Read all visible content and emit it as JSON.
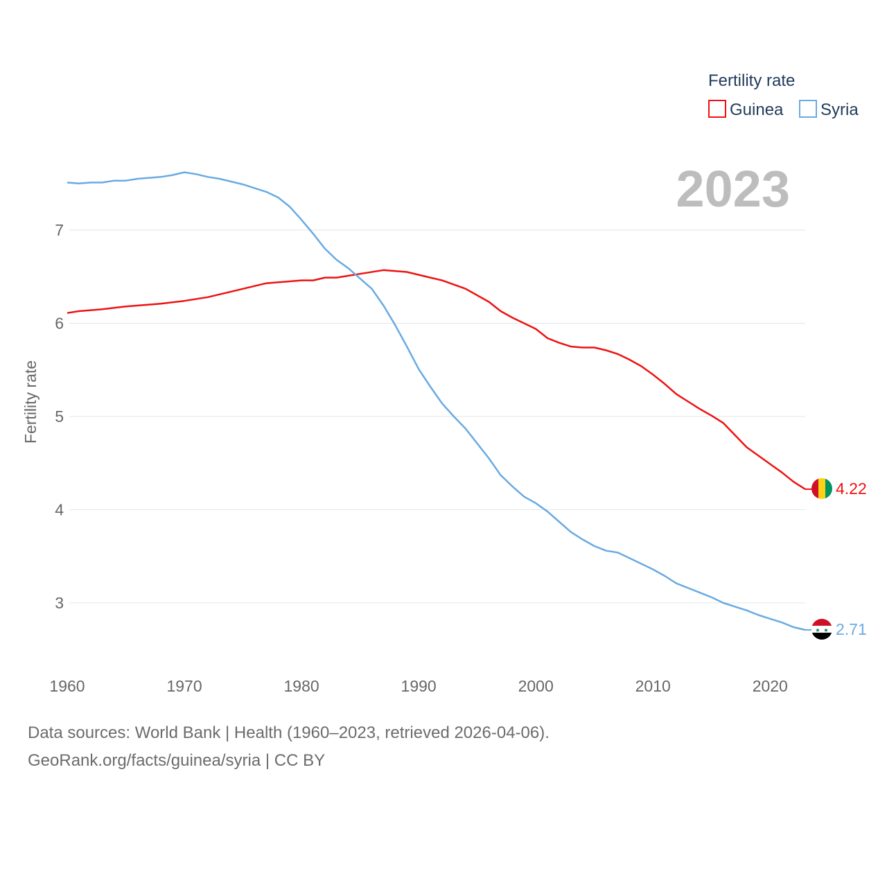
{
  "chart_data": {
    "type": "line",
    "title": "Fertility rate",
    "ylabel": "Fertility rate",
    "xlabel": "",
    "current_year": "2023",
    "xlim": [
      1960,
      2023
    ],
    "ylim": [
      2.5,
      7.75
    ],
    "x_ticks": [
      1960,
      1970,
      1980,
      1990,
      2000,
      2010,
      2020
    ],
    "y_ticks": [
      3,
      4,
      5,
      6,
      7
    ],
    "grid": true,
    "legend_position": "top-right",
    "series": [
      {
        "name": "Guinea",
        "color": "#ee1111",
        "end_label": "4.22",
        "flag": "guinea-flag",
        "points": [
          [
            1960,
            6.11
          ],
          [
            1961,
            6.13
          ],
          [
            1963,
            6.15
          ],
          [
            1965,
            6.18
          ],
          [
            1968,
            6.21
          ],
          [
            1970,
            6.24
          ],
          [
            1972,
            6.28
          ],
          [
            1974,
            6.34
          ],
          [
            1977,
            6.43
          ],
          [
            1980,
            6.46
          ],
          [
            1981,
            6.46
          ],
          [
            1982,
            6.49
          ],
          [
            1983,
            6.49
          ],
          [
            1985,
            6.53
          ],
          [
            1987,
            6.57
          ],
          [
            1989,
            6.55
          ],
          [
            1991,
            6.49
          ],
          [
            1992,
            6.46
          ],
          [
            1994,
            6.37
          ],
          [
            1996,
            6.23
          ],
          [
            1997,
            6.13
          ],
          [
            1998,
            6.06
          ],
          [
            2000,
            5.94
          ],
          [
            2001,
            5.84
          ],
          [
            2002,
            5.79
          ],
          [
            2003,
            5.75
          ],
          [
            2004,
            5.74
          ],
          [
            2005,
            5.74
          ],
          [
            2006,
            5.71
          ],
          [
            2007,
            5.67
          ],
          [
            2008,
            5.61
          ],
          [
            2009,
            5.54
          ],
          [
            2010,
            5.45
          ],
          [
            2011,
            5.35
          ],
          [
            2012,
            5.24
          ],
          [
            2013,
            5.16
          ],
          [
            2014,
            5.08
          ],
          [
            2015,
            5.01
          ],
          [
            2016,
            4.93
          ],
          [
            2017,
            4.8
          ],
          [
            2018,
            4.67
          ],
          [
            2019,
            4.58
          ],
          [
            2020,
            4.49
          ],
          [
            2021,
            4.4
          ],
          [
            2022,
            4.3
          ],
          [
            2023,
            4.22
          ]
        ]
      },
      {
        "name": "Syria",
        "color": "#68aae3",
        "end_label": "2.71",
        "flag": "syria-flag",
        "points": [
          [
            1960,
            7.51
          ],
          [
            1961,
            7.5
          ],
          [
            1962,
            7.51
          ],
          [
            1963,
            7.51
          ],
          [
            1964,
            7.53
          ],
          [
            1965,
            7.53
          ],
          [
            1966,
            7.55
          ],
          [
            1968,
            7.57
          ],
          [
            1969,
            7.59
          ],
          [
            1970,
            7.62
          ],
          [
            1971,
            7.6
          ],
          [
            1972,
            7.57
          ],
          [
            1973,
            7.55
          ],
          [
            1975,
            7.49
          ],
          [
            1977,
            7.41
          ],
          [
            1978,
            7.35
          ],
          [
            1979,
            7.25
          ],
          [
            1980,
            7.11
          ],
          [
            1981,
            6.96
          ],
          [
            1982,
            6.8
          ],
          [
            1983,
            6.68
          ],
          [
            1984,
            6.59
          ],
          [
            1985,
            6.48
          ],
          [
            1986,
            6.37
          ],
          [
            1987,
            6.19
          ],
          [
            1988,
            5.98
          ],
          [
            1989,
            5.75
          ],
          [
            1990,
            5.51
          ],
          [
            1991,
            5.32
          ],
          [
            1992,
            5.14
          ],
          [
            1993,
            5.0
          ],
          [
            1994,
            4.87
          ],
          [
            1995,
            4.71
          ],
          [
            1996,
            4.55
          ],
          [
            1997,
            4.37
          ],
          [
            1998,
            4.25
          ],
          [
            1999,
            4.14
          ],
          [
            2000,
            4.07
          ],
          [
            2001,
            3.98
          ],
          [
            2002,
            3.87
          ],
          [
            2003,
            3.76
          ],
          [
            2004,
            3.68
          ],
          [
            2005,
            3.61
          ],
          [
            2006,
            3.56
          ],
          [
            2007,
            3.54
          ],
          [
            2008,
            3.48
          ],
          [
            2009,
            3.42
          ],
          [
            2010,
            3.36
          ],
          [
            2011,
            3.29
          ],
          [
            2012,
            3.21
          ],
          [
            2013,
            3.16
          ],
          [
            2014,
            3.11
          ],
          [
            2015,
            3.06
          ],
          [
            2016,
            3.0
          ],
          [
            2017,
            2.96
          ],
          [
            2018,
            2.92
          ],
          [
            2019,
            2.87
          ],
          [
            2020,
            2.83
          ],
          [
            2021,
            2.79
          ],
          [
            2022,
            2.74
          ],
          [
            2023,
            2.71
          ]
        ]
      }
    ]
  },
  "footer": {
    "line1": "Data sources: World Bank | Health (1960–2023, retrieved 2026-04-06).",
    "line2": "GeoRank.org/facts/guinea/syria | CC BY"
  }
}
